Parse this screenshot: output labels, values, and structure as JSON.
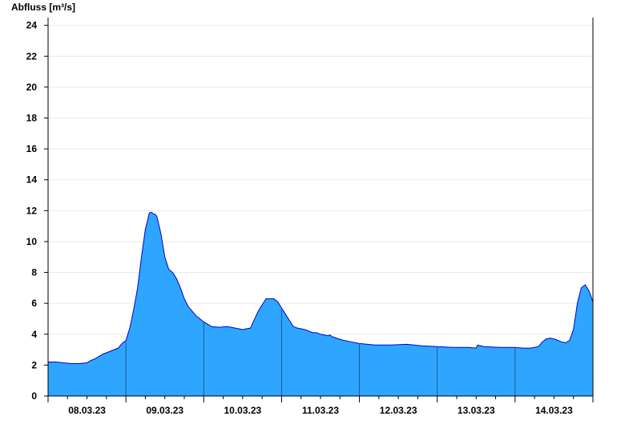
{
  "chart_data": {
    "type": "area",
    "ylabel": "Abfluss [m³/s]",
    "xlabel": "",
    "title": "",
    "ylim": [
      0,
      24.5
    ],
    "xlim": [
      0,
      7
    ],
    "y_ticks": [
      0,
      2,
      4,
      6,
      8,
      10,
      12,
      14,
      16,
      18,
      20,
      22,
      24
    ],
    "x_tick_labels": [
      "08.03.23",
      "09.03.23",
      "10.03.23",
      "11.03.23",
      "12.03.23",
      "13.03.23",
      "14.03.23"
    ],
    "x_day_boundaries": [
      1,
      2,
      3,
      4,
      5,
      6
    ],
    "grid": "horizontal",
    "fill_color": "#2ea6ff",
    "line_color": "#0000cc",
    "series": [
      {
        "x": [
          0,
          0.1,
          0.2,
          0.3,
          0.4,
          0.5,
          0.55,
          0.6,
          0.7,
          0.8,
          0.9,
          0.95,
          1.0,
          1.05,
          1.1,
          1.15,
          1.2,
          1.25,
          1.28,
          1.3,
          1.33,
          1.35,
          1.38,
          1.4,
          1.45,
          1.5,
          1.55,
          1.6,
          1.65,
          1.7,
          1.75,
          1.8,
          1.85,
          1.9,
          2.0,
          2.1,
          2.2,
          2.3,
          2.35,
          2.4,
          2.5,
          2.6,
          2.7,
          2.8,
          2.9,
          2.95,
          3.0,
          3.05,
          3.1,
          3.15,
          3.2,
          3.3,
          3.4,
          3.45,
          3.5,
          3.6,
          3.62,
          3.65,
          3.7,
          3.8,
          3.9,
          4.0,
          4.2,
          4.4,
          4.6,
          4.8,
          5.0,
          5.2,
          5.4,
          5.5,
          5.52,
          5.6,
          5.8,
          6.0,
          6.1,
          6.2,
          6.3,
          6.35,
          6.4,
          6.45,
          6.5,
          6.55,
          6.6,
          6.65,
          6.7,
          6.75,
          6.8,
          6.85,
          6.9,
          6.95,
          7.0
        ],
        "y": [
          2.2,
          2.2,
          2.15,
          2.1,
          2.1,
          2.15,
          2.3,
          2.4,
          2.7,
          2.9,
          3.1,
          3.4,
          3.6,
          4.4,
          5.6,
          7.0,
          9.0,
          10.8,
          11.4,
          11.85,
          11.9,
          11.8,
          11.75,
          11.6,
          10.5,
          9.0,
          8.2,
          8.0,
          7.6,
          7.0,
          6.3,
          5.8,
          5.5,
          5.2,
          4.8,
          4.5,
          4.45,
          4.5,
          4.45,
          4.4,
          4.3,
          4.4,
          5.5,
          6.3,
          6.3,
          6.1,
          5.7,
          5.3,
          4.9,
          4.5,
          4.4,
          4.3,
          4.1,
          4.1,
          4.0,
          3.9,
          3.95,
          3.85,
          3.75,
          3.6,
          3.5,
          3.4,
          3.3,
          3.3,
          3.35,
          3.25,
          3.2,
          3.15,
          3.15,
          3.1,
          3.3,
          3.2,
          3.15,
          3.15,
          3.1,
          3.1,
          3.2,
          3.5,
          3.7,
          3.75,
          3.7,
          3.6,
          3.5,
          3.45,
          3.6,
          4.3,
          6.0,
          7.0,
          7.2,
          6.8,
          6.1
        ]
      }
    ]
  }
}
